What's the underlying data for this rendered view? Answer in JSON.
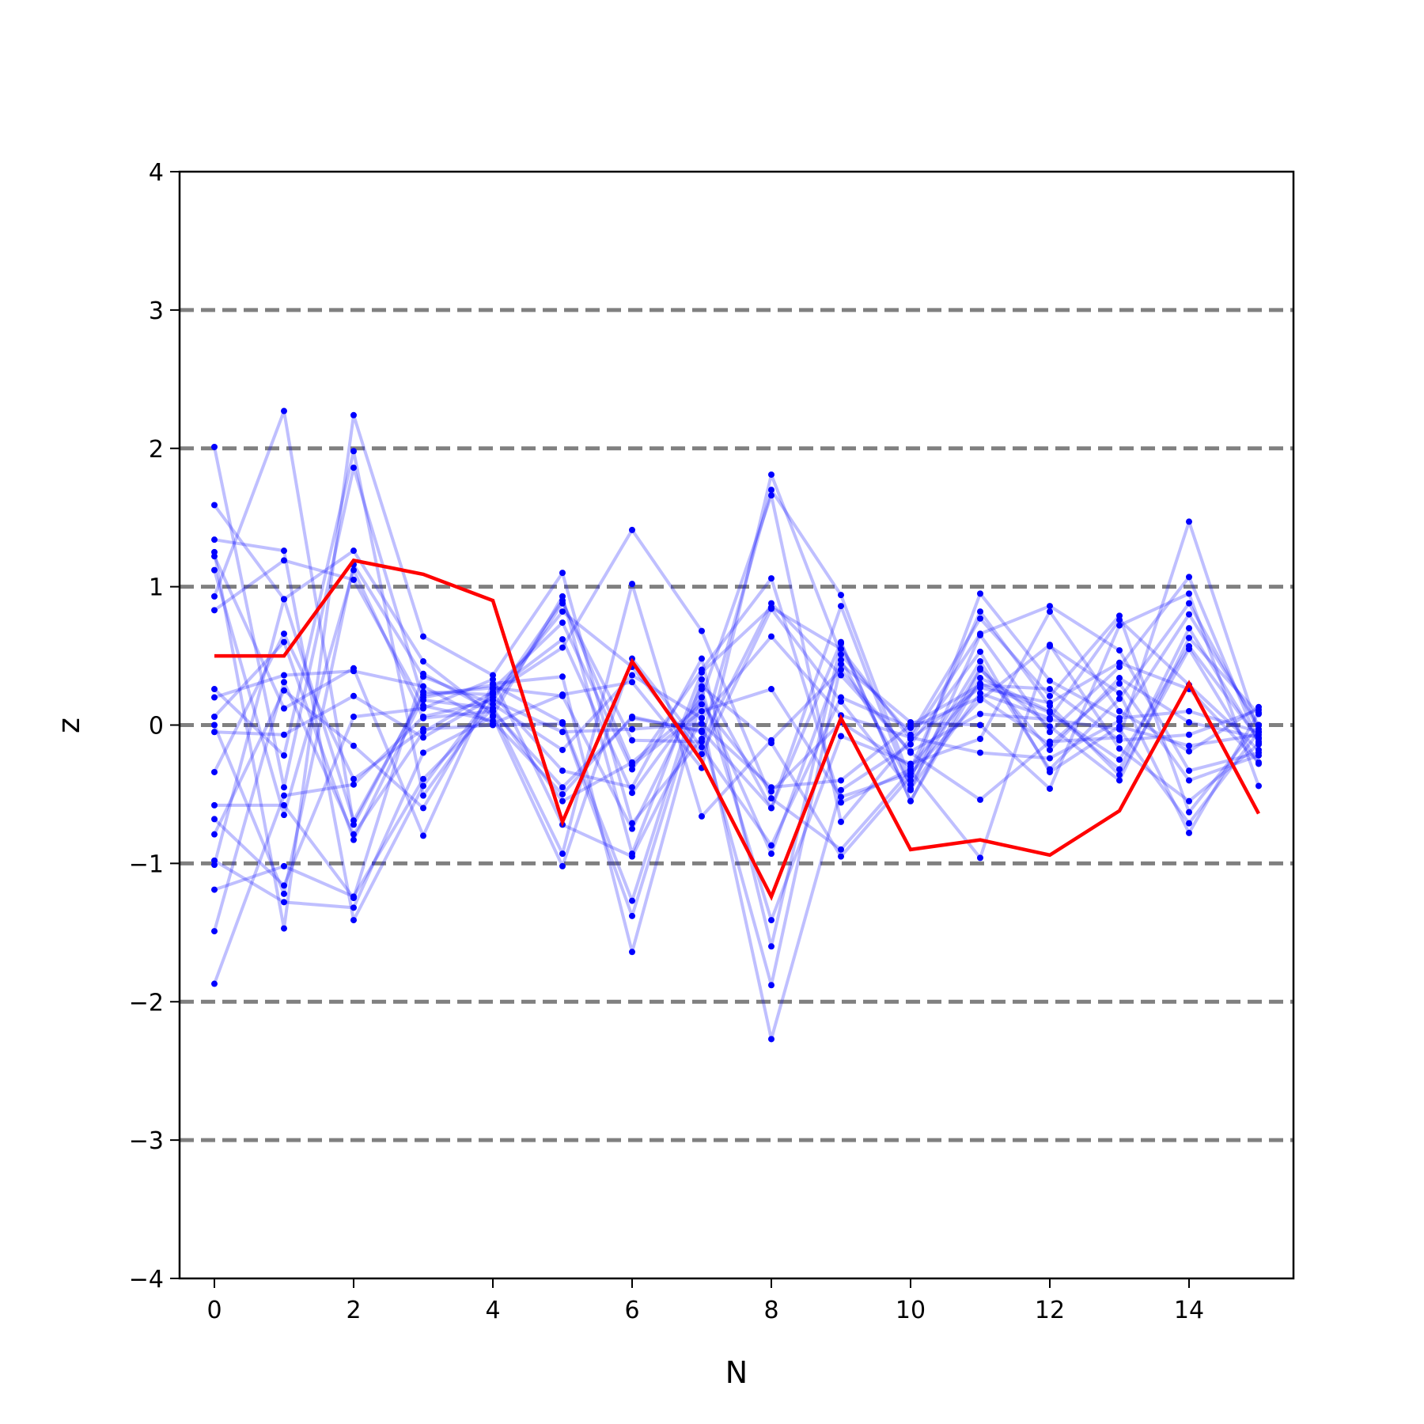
{
  "chart_data": {
    "type": "line",
    "title": "",
    "xlabel": "N",
    "ylabel": "z",
    "xlim": [
      -0.5,
      15.5
    ],
    "ylim": [
      -4,
      4
    ],
    "xticks": [
      0,
      2,
      4,
      6,
      8,
      10,
      12,
      14
    ],
    "yticks": [
      -4,
      -3,
      -2,
      -1,
      0,
      1,
      2,
      3,
      4
    ],
    "ytick_labels": [
      "−4",
      "−3",
      "−2",
      "−1",
      "0",
      "1",
      "2",
      "3",
      "4"
    ],
    "reference_lines": [
      -3,
      -2,
      -1,
      0,
      1,
      2,
      3
    ],
    "colors": {
      "background_series": "#0000ff",
      "highlight": "#ff0000",
      "reference": "#808080"
    },
    "x": [
      0,
      1,
      2,
      3,
      4,
      5,
      6,
      7,
      8,
      9,
      10,
      11,
      12,
      13,
      14,
      15
    ],
    "series": [
      {
        "values": [
          0.5,
          0.5,
          1.19,
          1.09,
          0.9,
          -0.7,
          0.46,
          -0.26,
          -1.24,
          0.05,
          -0.9,
          -0.83,
          -0.94,
          -0.62,
          0.3,
          -0.64
        ],
        "highlight": true
      },
      {
        "values": [
          2.01,
          -0.45,
          1.86,
          0.18,
          0.12,
          -0.55,
          -0.27,
          0.15,
          -0.48,
          0.02,
          -0.3,
          0.3,
          0.09,
          -0.25,
          0.57,
          -0.1
        ]
      },
      {
        "values": [
          1.59,
          0.91,
          1.26,
          0.46,
          0.07,
          0.93,
          -0.93,
          0.38,
          0.85,
          0.55,
          -0.1,
          0.66,
          0.86,
          0.54,
          -0.33,
          -0.2
        ]
      },
      {
        "values": [
          1.34,
          1.26,
          -1.41,
          -0.44,
          0.23,
          0.56,
          1.41,
          0.68,
          -0.53,
          -0.9,
          -0.33,
          -0.96,
          0.57,
          0.23,
          -0.78,
          0.09
        ]
      },
      {
        "values": [
          1.25,
          -1.47,
          2.24,
          0.64,
          0.36,
          1.1,
          -0.71,
          -0.1,
          1.7,
          0.94,
          -0.4,
          0.95,
          0.32,
          0.05,
          0.1,
          -0.05
        ]
      },
      {
        "values": [
          1.22,
          0.12,
          0.41,
          -0.8,
          0.3,
          0.35,
          -1.64,
          0.2,
          1.66,
          -0.7,
          -0.1,
          0.27,
          0.16,
          0.45,
          0.26,
          -0.27
        ]
      },
      {
        "values": [
          1.12,
          -0.65,
          1.12,
          0.05,
          0.1,
          -0.93,
          1.02,
          -0.66,
          -0.11,
          0.4,
          -0.2,
          -0.54,
          -0.12,
          -0.09,
          1.47,
          -0.05
        ]
      },
      {
        "values": [
          0.93,
          2.27,
          -0.72,
          0.24,
          0.22,
          -0.33,
          -0.45,
          0.48,
          -1.6,
          0.59,
          -0.55,
          0.4,
          -0.01,
          -0.4,
          0.63,
          0.08
        ]
      },
      {
        "values": [
          0.83,
          1.19,
          1.05,
          0.14,
          0.03,
          -0.5,
          0.06,
          -0.05,
          -1.88,
          0.44,
          0.02,
          0.0,
          -0.46,
          0.72,
          0.95,
          -0.44
        ]
      },
      {
        "values": [
          0.26,
          -0.22,
          1.98,
          -0.51,
          0.18,
          0.9,
          -0.29,
          0.1,
          0.26,
          -0.52,
          -0.35,
          0.18,
          0.58,
          -0.17,
          -0.55,
          -0.14
        ]
      },
      {
        "values": [
          0.2,
          0.36,
          0.39,
          0.28,
          0.01,
          0.22,
          0.31,
          -0.31,
          1.81,
          0.51,
          -0.07,
          0.77,
          0.21,
          0.79,
          -0.63,
          0.0
        ]
      },
      {
        "values": [
          0.06,
          0.6,
          -0.83,
          0.2,
          0.29,
          0.02,
          -1.27,
          0.33,
          -0.6,
          0.86,
          -0.46,
          0.23,
          0.05,
          0.76,
          0.29,
          -0.18
        ]
      },
      {
        "values": [
          0.0,
          -1.22,
          1.16,
          0.35,
          0.15,
          -0.18,
          0.36,
          0.05,
          -2.27,
          -0.47,
          -0.14,
          0.53,
          -0.34,
          -0.01,
          -0.15,
          -0.07
        ]
      },
      {
        "values": [
          -0.05,
          -0.07,
          0.21,
          -0.09,
          0.2,
          0.82,
          0.42,
          -0.21,
          0.84,
          0.17,
          -0.47,
          0.65,
          -0.05,
          0.42,
          1.07,
          -0.13
        ]
      },
      {
        "values": [
          -0.34,
          0.66,
          -0.39,
          -0.03,
          0.0,
          0.01,
          -1.38,
          0.26,
          -1.41,
          -0.08,
          -0.28,
          -0.1,
          0.82,
          0.1,
          -0.19,
          0.13
        ]
      },
      {
        "values": [
          -0.58,
          -0.58,
          -1.25,
          0.37,
          0.1,
          -0.45,
          0.05,
          -0.04,
          -0.6,
          0.6,
          -0.55,
          0.34,
          0.1,
          -0.32,
          0.7,
          -0.12
        ]
      },
      {
        "values": [
          -0.68,
          -1.16,
          0.06,
          0.12,
          0.33,
          -0.72,
          -0.95,
          0.05,
          0.64,
          0.07,
          -0.09,
          -0.2,
          -0.24,
          0.03,
          0.8,
          0.0
        ]
      },
      {
        "values": [
          -0.79,
          0.25,
          -0.15,
          -0.6,
          0.26,
          0.74,
          -0.32,
          0.4,
          1.06,
          -0.56,
          -0.32,
          0.82,
          0.14,
          -0.36,
          0.55,
          -0.28
        ]
      },
      {
        "values": [
          -0.98,
          -1.28,
          -1.32,
          -0.2,
          0.06,
          -1.02,
          0.48,
          -0.16,
          -0.87,
          0.2,
          -0.02,
          0.2,
          -0.14,
          0.3,
          -0.4,
          -0.22
        ]
      },
      {
        "values": [
          -1.01,
          0.91,
          -0.69,
          0.22,
          0.27,
          0.21,
          -0.75,
          0.28,
          -0.13,
          -0.95,
          -0.37,
          0.46,
          -0.32,
          0.19,
          0.88,
          -0.03
        ]
      },
      {
        "values": [
          -1.19,
          -1.02,
          -1.24,
          -0.39,
          0.12,
          0.88,
          -0.11,
          -0.12,
          0.88,
          0.36,
          -0.19,
          0.08,
          0.04,
          -0.03,
          -0.71,
          -0.05
        ]
      },
      {
        "values": [
          -1.49,
          0.31,
          -0.79,
          -0.05,
          0.24,
          0.62,
          -0.49,
          0.2,
          -0.93,
          0.47,
          -0.43,
          0.41,
          -0.18,
          0.34,
          0.02,
          -0.09
        ]
      },
      {
        "values": [
          -1.87,
          -0.51,
          -0.43,
          0.06,
          0.18,
          -0.05,
          -0.03,
          0.01,
          -0.45,
          -0.4,
          0.0,
          0.29,
          0.26,
          -0.11,
          -0.07,
          0.11
        ]
      }
    ]
  }
}
